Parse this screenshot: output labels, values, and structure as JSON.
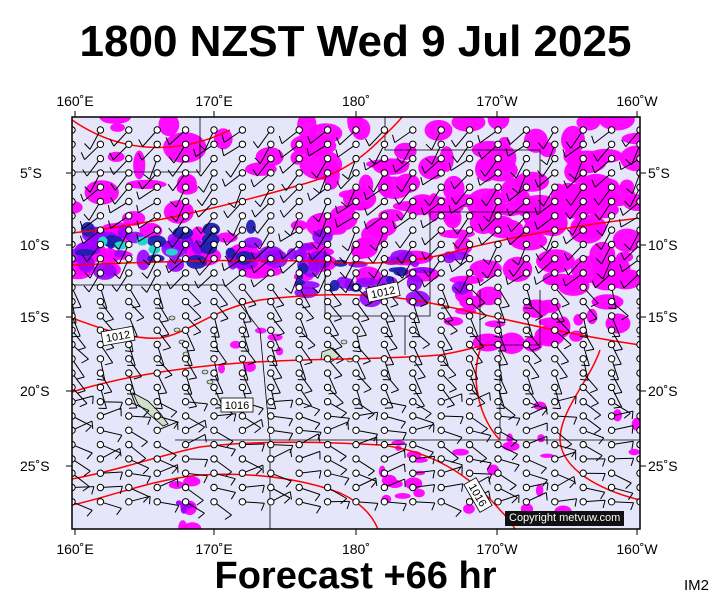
{
  "title": "1800 NZST Wed 9 Jul 2025",
  "footer": "Forecast +66 hr",
  "corner_label": "IM2",
  "copyright": "Copyright metvuw.com",
  "lon_labels": [
    "160˚E",
    "170˚E",
    "180˚",
    "170˚W",
    "160˚W"
  ],
  "lat_labels": [
    "5˚S",
    "10˚S",
    "15˚S",
    "20˚S",
    "25˚S"
  ],
  "isobar_labels": [
    "1012",
    "1012",
    "1016",
    "1016"
  ],
  "colors": {
    "background_sea": "#e6e6fa",
    "precip_light": "#ff00ff",
    "precip_medium": "#9900ff",
    "precip_heavy": "#1f1fb0",
    "precip_peak": "#1fd6d0",
    "isobar": "#ff0000",
    "land": "#cfe0c8"
  }
}
